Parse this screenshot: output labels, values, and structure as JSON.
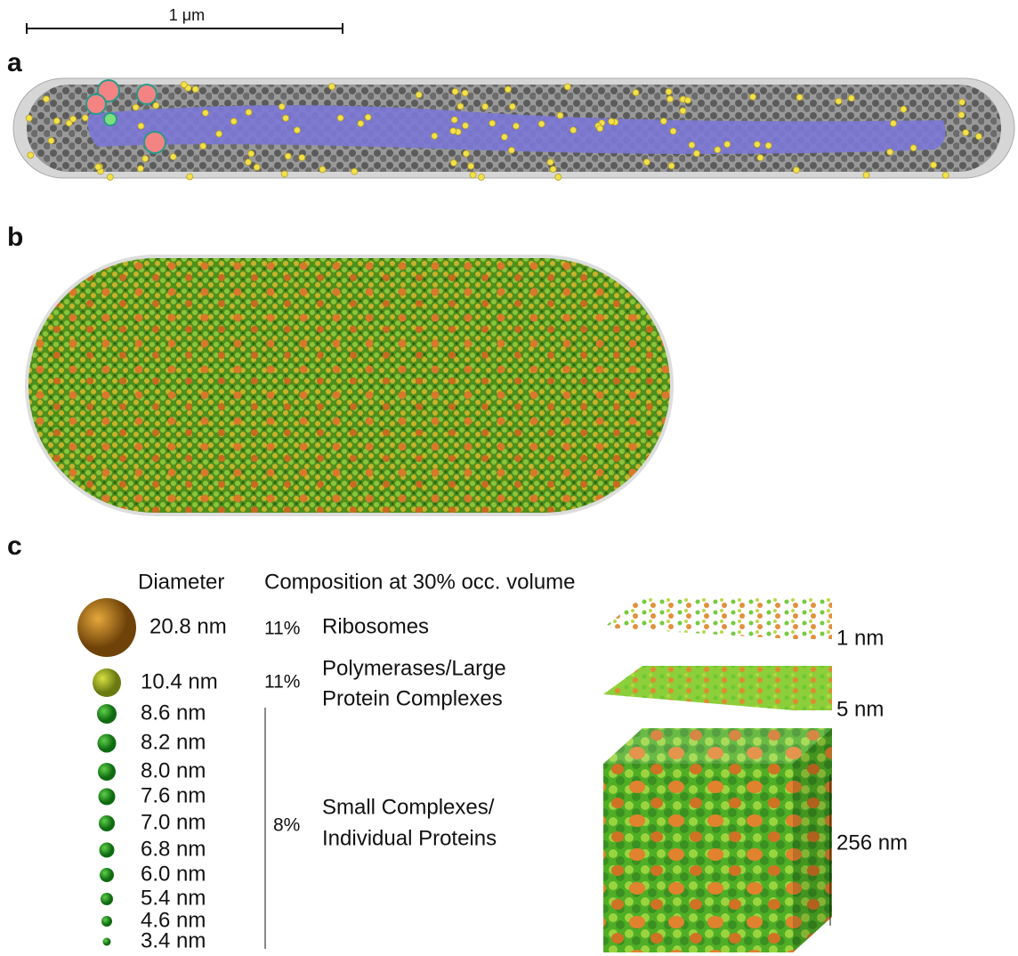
{
  "scale_bar": {
    "label": "1 μm"
  },
  "panels": [
    {
      "label": "a"
    },
    {
      "label": "b"
    },
    {
      "label": "c"
    }
  ],
  "legend": {
    "headers": [
      "Diameter",
      "Composition at 30% occ. volume"
    ],
    "sizes": [
      "20.8 nm",
      "10.4 nm",
      "8.6 nm",
      "8.2 nm",
      "8.0 nm",
      "7.6 nm",
      "7.0 nm",
      "6.8 nm",
      "6.0 nm",
      "5.4 nm",
      "4.6 nm",
      "3.4 nm"
    ],
    "groups": [
      {
        "percent": "11%",
        "lines": [
          "Ribosomes"
        ]
      },
      {
        "percent": "11%",
        "lines": [
          "Polymerases/Large",
          "Protein Complexes"
        ]
      },
      {
        "percent": "8%",
        "lines": [
          "Small Complexes/",
          "Individual Proteins"
        ]
      }
    ]
  },
  "slices": [
    {
      "label": "1 nm"
    },
    {
      "label": "5 nm"
    },
    {
      "label": "256 nm"
    }
  ]
}
